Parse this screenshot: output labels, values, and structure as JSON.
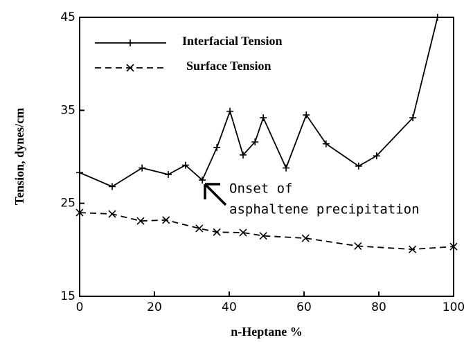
{
  "chart_data": {
    "type": "line",
    "xlabel": "n-Heptane %",
    "ylabel": "Tension, dynes/cm",
    "xlim": [
      0,
      100
    ],
    "xticks": [
      0,
      20,
      40,
      60,
      80,
      100
    ],
    "ylim": [
      15,
      45
    ],
    "yticks": [
      15,
      25,
      35,
      45
    ],
    "legend": "upper left",
    "annotation": [
      "Onset of",
      "asphaltene precipitation"
    ],
    "series": [
      {
        "name": "Interfacial Tension",
        "color": "#000000",
        "marker": "+",
        "dash": false,
        "x": [
          0,
          8.7,
          16.7,
          23.7,
          28.3,
          32.8,
          36.7,
          40.2,
          43.7,
          46.9,
          49.1,
          55.2,
          60.6,
          65.9,
          74.6,
          79.4,
          89.1,
          95.7
        ],
        "values": [
          28.3,
          26.8,
          28.8,
          28.1,
          29.1,
          27.5,
          31.0,
          34.9,
          30.2,
          31.6,
          34.2,
          28.8,
          34.5,
          31.4,
          29.0,
          30.1,
          34.2,
          45
        ]
      },
      {
        "name": "Surface Tension",
        "color": "#000000",
        "marker": "x",
        "dash": true,
        "x": [
          0,
          8.7,
          16.3,
          23.1,
          32,
          36.7,
          43.7,
          49.1,
          60.4,
          74.4,
          89,
          100
        ],
        "values": [
          24.0,
          23.85,
          23.1,
          23.2,
          22.3,
          21.9,
          21.85,
          21.5,
          21.25,
          20.4,
          20.05,
          20.35
        ]
      }
    ]
  }
}
